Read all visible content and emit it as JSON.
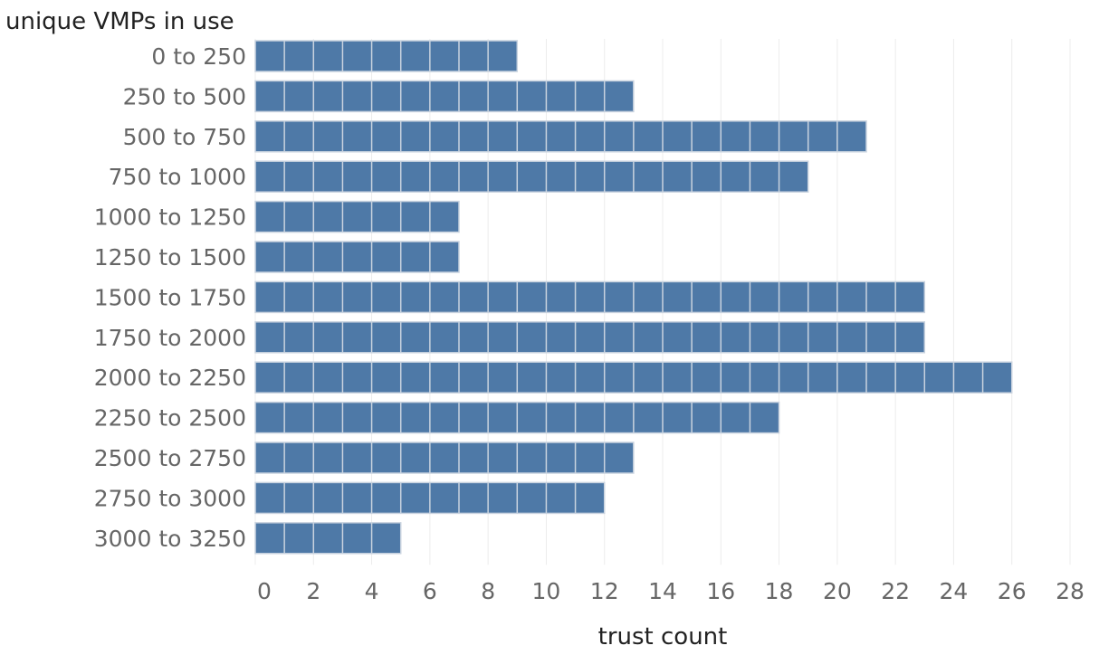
{
  "chart_data": {
    "type": "bar",
    "orientation": "horizontal",
    "ylabel": "unique VMPs in use",
    "xlabel": "trust count",
    "categories": [
      "0 to 250",
      "250 to 500",
      "500 to 750",
      "750 to 1000",
      "1000 to 1250",
      "1250 to 1500",
      "1500 to 1750",
      "1750 to 2000",
      "2000 to 2250",
      "2250 to 2500",
      "2500 to 2750",
      "2750 to 3000",
      "3000 to 3250"
    ],
    "values": [
      9,
      13,
      21,
      19,
      7,
      7,
      23,
      23,
      26,
      18,
      13,
      12,
      5
    ],
    "xlim": [
      0,
      28
    ],
    "xticks": [
      0,
      2,
      4,
      6,
      8,
      10,
      12,
      14,
      16,
      18,
      20,
      22,
      24,
      26,
      28
    ],
    "grid": true,
    "bar_color": "#4e79a7",
    "segment_line_color": "#c9d3df"
  }
}
